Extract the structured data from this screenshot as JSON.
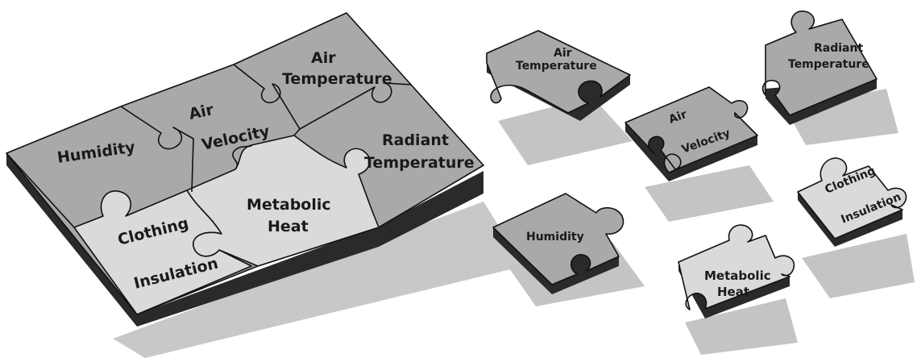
{
  "colors": {
    "dark_piece": "#a9a9a9",
    "light_piece": "#dadada",
    "edge": "#2a2a2a",
    "outline": "#111111",
    "shadow": "#c4c4c4",
    "background": "#ffffff"
  },
  "assembled": {
    "humidity": "Humidity",
    "air_velocity": [
      "Air",
      "Velocity"
    ],
    "air_temperature": [
      "Air",
      "Temperature"
    ],
    "radiant_temperature": [
      "Radiant",
      "Temperature"
    ],
    "clothing_insulation": [
      "Clothing",
      "Insulation"
    ],
    "metabolic_heat": [
      "Metabolic",
      "Heat"
    ]
  },
  "scattered": {
    "air_temperature": [
      "Air",
      "Temperature"
    ],
    "radiant_temperature": [
      "Radiant",
      "Temperature"
    ],
    "air_velocity": [
      "Air",
      "Velocity"
    ],
    "humidity": "Humidity",
    "clothing_insulation": [
      "Clothing",
      "Insulation"
    ],
    "metabolic_heat": [
      "Metabolic",
      "Heat"
    ]
  }
}
